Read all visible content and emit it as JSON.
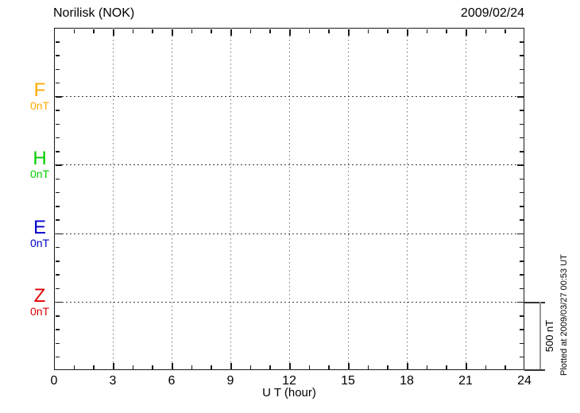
{
  "chart_data": {
    "type": "line",
    "station": "Norilisk (NOK)",
    "date": "2009/02/24",
    "xlabel": "U T (hour)",
    "x_range": [
      0,
      24
    ],
    "x_major_ticks": [
      0,
      3,
      6,
      9,
      12,
      15,
      18,
      21,
      24
    ],
    "x_minor_step_hours": 1,
    "grid_vertical_every_hours": 3,
    "y_minor_tick_nT": 100,
    "baseline_spacing_nT": 500,
    "channels": [
      {
        "name": "F",
        "baseline_label": "0nT",
        "color": "#FFA800"
      },
      {
        "name": "H",
        "baseline_label": "0nT",
        "color": "#00CC00"
      },
      {
        "name": "E",
        "baseline_label": "0nT",
        "color": "#0000CC"
      },
      {
        "name": "Z",
        "baseline_label": "0nT",
        "color": "#DD0000"
      }
    ],
    "series": [],
    "series_note": "no data traces plotted; empty axes with dotted channel baselines at 0nT",
    "grid_style": "dotted",
    "legend_position": "left",
    "scale_bar": {
      "label": "500 nT",
      "span_nT": 500
    },
    "footer_note": "Plotted at 2009/03/27 00:53 UT"
  }
}
